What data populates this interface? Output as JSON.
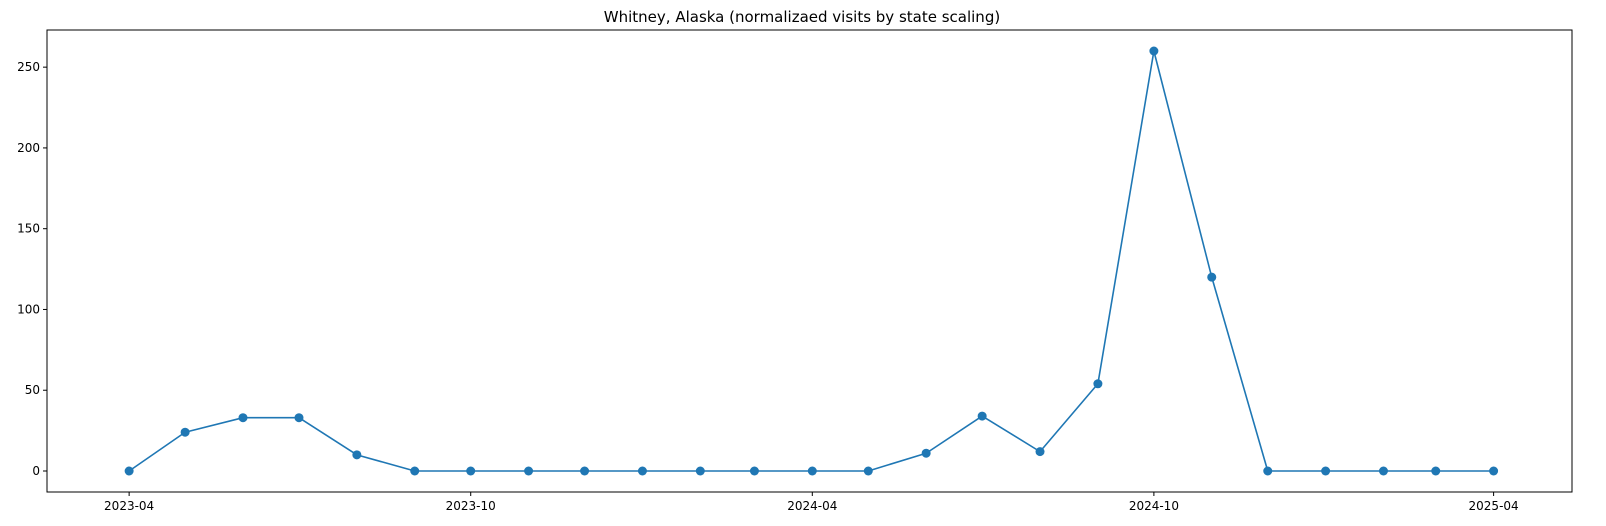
{
  "chart_data": {
    "type": "line",
    "title": "Whitney, Alaska (normalizaed visits by state scaling)",
    "xlabel": "",
    "ylabel": "",
    "x_axis_type": "date",
    "x_ticks": [
      "2023-04",
      "2023-10",
      "2024-04",
      "2024-10",
      "2025-04"
    ],
    "y_ticks": [
      0,
      50,
      100,
      150,
      200,
      250
    ],
    "xlim": [
      "2023-02-16",
      "2025-05-13"
    ],
    "ylim": [
      -13,
      273
    ],
    "grid": false,
    "legend": "none",
    "series": [
      {
        "color": "#1f77b4",
        "marker": "circle",
        "x": [
          "2023-04-01",
          "2023-05-01",
          "2023-06-01",
          "2023-07-01",
          "2023-08-01",
          "2023-09-01",
          "2023-10-01",
          "2023-11-01",
          "2023-12-01",
          "2024-01-01",
          "2024-02-01",
          "2024-03-01",
          "2024-04-01",
          "2024-05-01",
          "2024-06-01",
          "2024-07-01",
          "2024-08-01",
          "2024-09-01",
          "2024-10-01",
          "2024-11-01",
          "2024-12-01",
          "2025-01-01",
          "2025-02-01",
          "2025-03-01",
          "2025-04-01"
        ],
        "values": [
          0,
          24,
          33,
          33,
          10,
          0,
          0,
          0,
          0,
          0,
          0,
          0,
          0,
          0,
          11,
          34,
          12,
          54,
          260,
          120,
          0,
          0,
          0,
          0,
          0
        ]
      }
    ]
  }
}
